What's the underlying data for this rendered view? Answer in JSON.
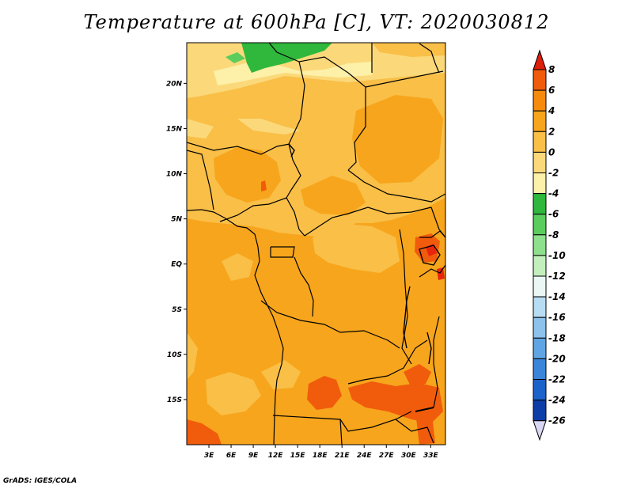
{
  "title": "Temperature at 600hPa [C], VT: 2020030812",
  "credit": "GrADS: IGES/COLA",
  "map": {
    "lon_range": [
      0,
      35
    ],
    "lat_range": [
      -20,
      24.5
    ],
    "x_ticks": [
      {
        "value": 3,
        "label": "3E"
      },
      {
        "value": 6,
        "label": "6E"
      },
      {
        "value": 9,
        "label": "9E"
      },
      {
        "value": 12,
        "label": "12E"
      },
      {
        "value": 15,
        "label": "15E"
      },
      {
        "value": 18,
        "label": "18E"
      },
      {
        "value": 21,
        "label": "21E"
      },
      {
        "value": 24,
        "label": "24E"
      },
      {
        "value": 27,
        "label": "27E"
      },
      {
        "value": 30,
        "label": "30E"
      },
      {
        "value": 33,
        "label": "33E"
      }
    ],
    "y_ticks": [
      {
        "value": 20,
        "label": "20N"
      },
      {
        "value": 15,
        "label": "15N"
      },
      {
        "value": 10,
        "label": "10N"
      },
      {
        "value": 5,
        "label": "5N"
      },
      {
        "value": 0,
        "label": "EQ"
      },
      {
        "value": -5,
        "label": "5S"
      },
      {
        "value": -10,
        "label": "10S"
      },
      {
        "value": -15,
        "label": "15S"
      }
    ]
  },
  "colorbar": {
    "labels": [
      "8",
      "6",
      "4",
      "2",
      "0",
      "-2",
      "-4",
      "-6",
      "-8",
      "-10",
      "-12",
      "-14",
      "-16",
      "-18",
      "-20",
      "-22",
      "-24",
      "-26"
    ],
    "colors": [
      "#e8260e",
      "#f05c0c",
      "#f58a0c",
      "#f7a51c",
      "#f9bf47",
      "#fbd97a",
      "#fdf0a8",
      "#2fb83c",
      "#5acd5c",
      "#8fe08c",
      "#c3efbd",
      "#eaf7f4",
      "#b8dcf2",
      "#8cc2ec",
      "#5fa5e4",
      "#3a85da",
      "#1c62cb",
      "#0d3ea7",
      "#061c6e"
    ],
    "top_arrow_color": "#dc1e0a",
    "bottom_arrow_color": "#d8d6f4"
  }
}
